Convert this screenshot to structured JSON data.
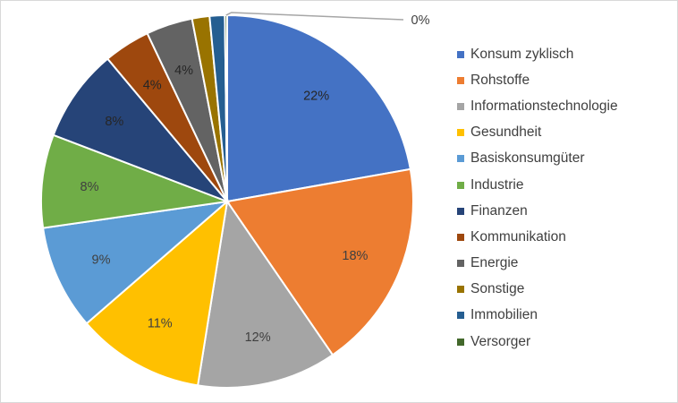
{
  "chart_data": {
    "type": "pie",
    "categories": [
      "Konsum zyklisch",
      "Rohstoffe",
      "Informationstechnologie",
      "Gesundheit",
      "Basiskonsumgüter",
      "Industrie",
      "Finanzen",
      "Kommunikation",
      "Energie",
      "Sonstige",
      "Immobilien",
      "Versorger"
    ],
    "values": [
      22,
      18,
      12,
      11,
      9,
      8,
      8,
      4,
      4,
      1.5,
      1.3,
      0.2
    ],
    "labels": [
      "22%",
      "18%",
      "12%",
      "11%",
      "9%",
      "8%",
      "8%",
      "4%",
      "4%",
      "",
      "",
      "0%"
    ],
    "colors": [
      "#4472C4",
      "#ED7D31",
      "#A5A5A5",
      "#FFC000",
      "#5B9BD5",
      "#70AD47",
      "#264478",
      "#9E480E",
      "#636363",
      "#997300",
      "#255E91",
      "#43682B"
    ],
    "legend_position": "right"
  }
}
